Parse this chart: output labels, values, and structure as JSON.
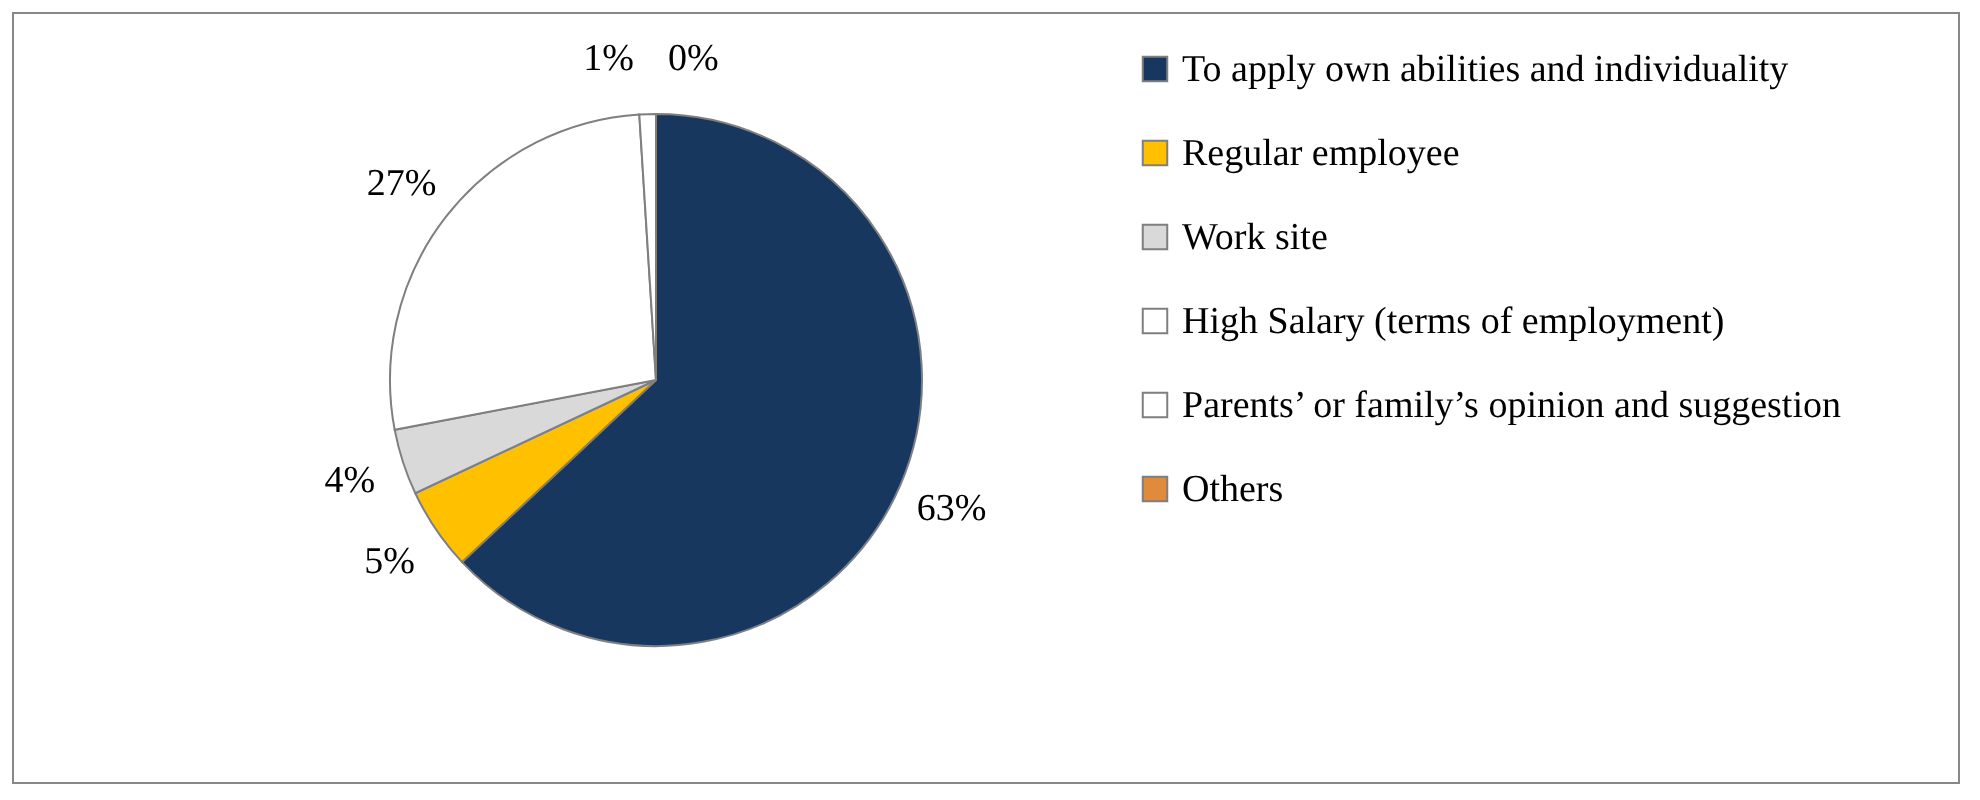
{
  "chart_data": {
    "type": "pie",
    "categories": [
      "To apply own abilities and individuality",
      "Regular employee",
      "Work site",
      "High Salary (terms of employment)",
      "Parents’ or family’s opinion and suggestion",
      "Others"
    ],
    "values": [
      63,
      5,
      4,
      27,
      1,
      0
    ],
    "colors": [
      "#17375e",
      "#ffc000",
      "#d9d9d9",
      "#ffffff",
      "#ffffff",
      "#e08a3c"
    ],
    "value_labels": [
      "63%",
      "5%",
      "4%",
      "27%",
      "1%",
      "0%"
    ],
    "legend": "right"
  }
}
